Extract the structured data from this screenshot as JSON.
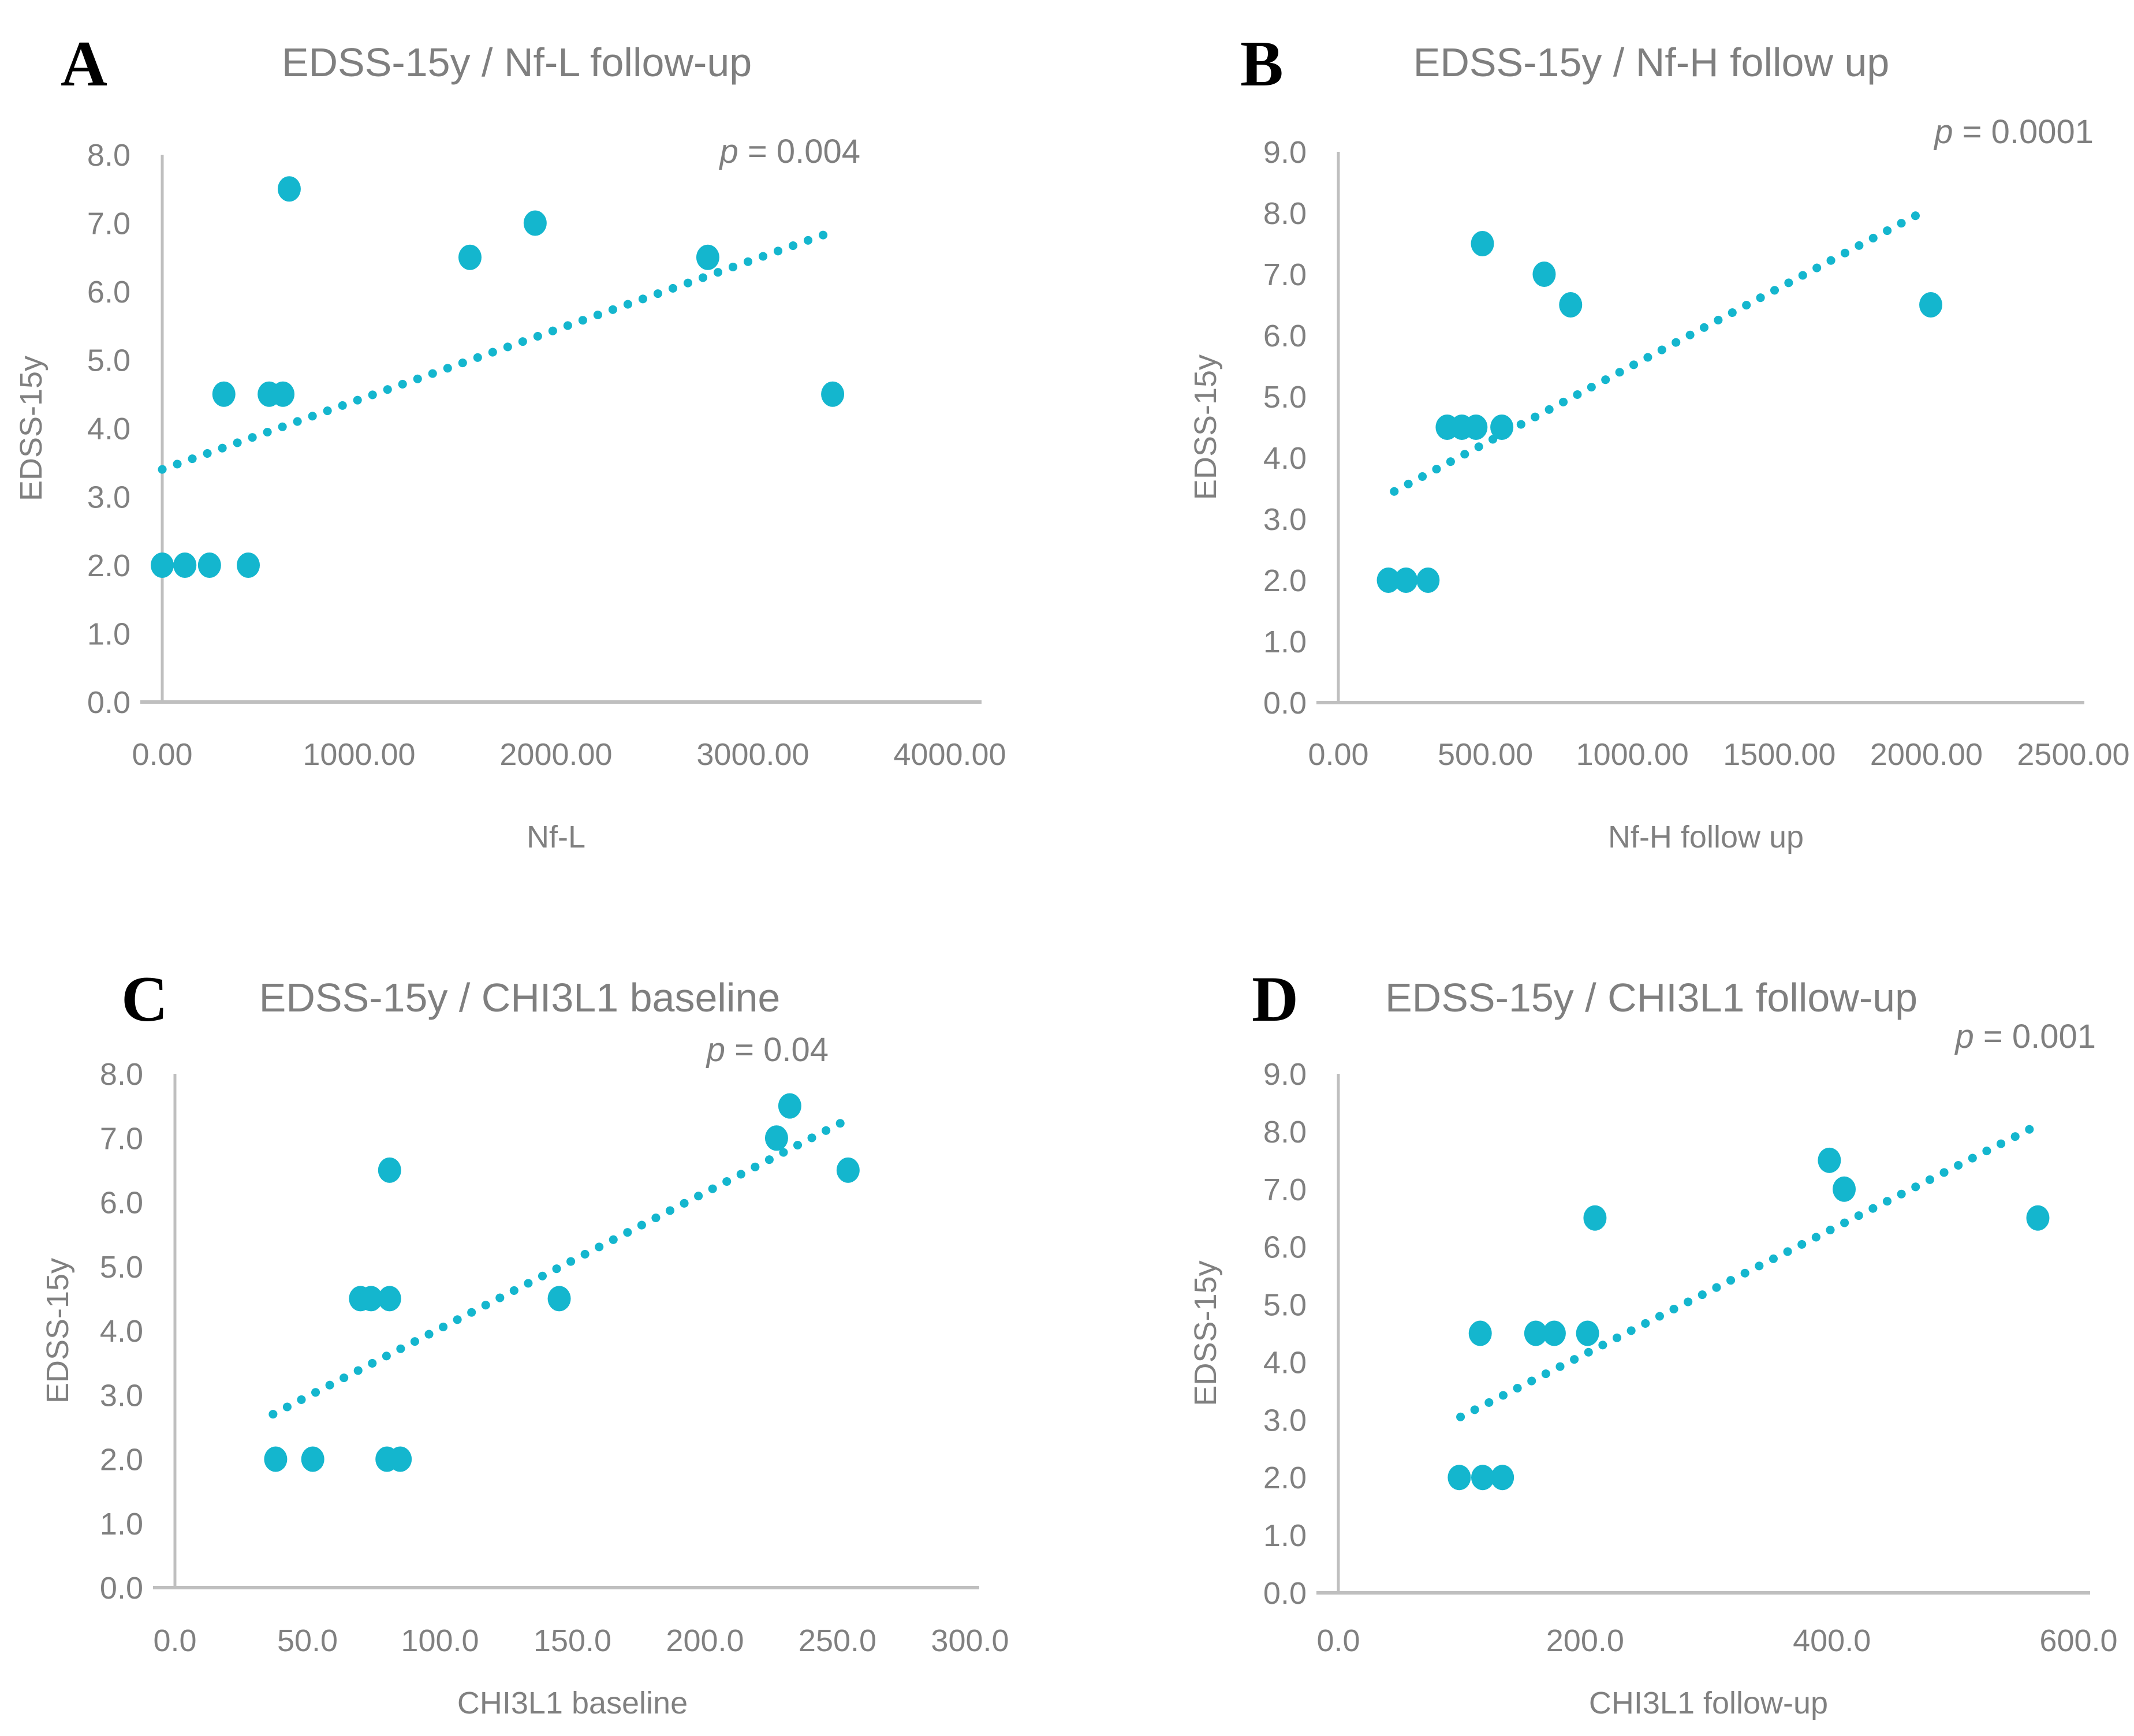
{
  "figure": {
    "background": "#ffffff",
    "description": "Four scatter plots correlating EDSS at 15 years with biomarker levels"
  },
  "colors": {
    "accent": "#14B6CE",
    "axis_line": "#BFBFBF",
    "tick_label": "#808080",
    "title_text": "#7F7F7F",
    "panel_letter": "#000000"
  },
  "chart_data": [
    {
      "id": "A",
      "type": "scatter",
      "letter": "A",
      "title": "EDSS-15y / Nf-L follow-up",
      "p_label": "p = 0.004",
      "xlabel": "Nf-L",
      "ylabel": "EDSS-15y",
      "xlim": [
        0,
        4000
      ],
      "ylim": [
        0,
        8
      ],
      "x_ticks": {
        "values": [
          0,
          1000,
          2000,
          3000,
          4000
        ],
        "labels": [
          "0.00",
          "1000.00",
          "2000.00",
          "3000.00",
          "4000.00"
        ]
      },
      "y_ticks": {
        "values": [
          0,
          1,
          2,
          3,
          4,
          5,
          6,
          7,
          8
        ],
        "labels": [
          "0.0",
          "1.0",
          "2.0",
          "3.0",
          "4.0",
          "5.0",
          "6.0",
          "7.0",
          "8.0"
        ]
      },
      "points": [
        [
          0,
          2.0
        ],
        [
          115,
          2.0
        ],
        [
          240,
          2.0
        ],
        [
          437,
          2.0
        ],
        [
          313,
          4.5
        ],
        [
          543,
          4.5
        ],
        [
          613,
          4.5
        ],
        [
          3405,
          4.5
        ],
        [
          1563,
          6.5
        ],
        [
          2771,
          6.5
        ],
        [
          1894,
          7.0
        ],
        [
          645,
          7.5
        ]
      ],
      "trend": {
        "x1": 0,
        "y1": 3.4,
        "x2": 3380,
        "y2": 6.85
      },
      "grid": false,
      "legend": "none"
    },
    {
      "id": "B",
      "type": "scatter",
      "letter": "B",
      "title": "EDSS-15y / Nf-H follow up",
      "p_label": "p = 0.0001",
      "xlabel": "Nf-H follow up",
      "ylabel": "EDSS-15y",
      "xlim": [
        0,
        2500
      ],
      "ylim": [
        0,
        9
      ],
      "x_ticks": {
        "values": [
          0,
          500,
          1000,
          1500,
          2000,
          2500
        ],
        "labels": [
          "0.00",
          "500.00",
          "1000.00",
          "1500.00",
          "2000.00",
          "2500.00"
        ]
      },
      "y_ticks": {
        "values": [
          0,
          1,
          2,
          3,
          4,
          5,
          6,
          7,
          8,
          9
        ],
        "labels": [
          "0.0",
          "1.0",
          "2.0",
          "3.0",
          "4.0",
          "5.0",
          "6.0",
          "7.0",
          "8.0",
          "9.0"
        ]
      },
      "points": [
        [
          170,
          2.0
        ],
        [
          230,
          2.0
        ],
        [
          305,
          2.0
        ],
        [
          370,
          4.5
        ],
        [
          420,
          4.5
        ],
        [
          468,
          4.5
        ],
        [
          556,
          4.5
        ],
        [
          790,
          6.5
        ],
        [
          2015,
          6.5
        ],
        [
          700,
          7.0
        ],
        [
          490,
          7.5
        ]
      ],
      "trend": {
        "x1": 190,
        "y1": 3.45,
        "x2": 2000,
        "y2": 8.05
      },
      "grid": false,
      "legend": "none"
    },
    {
      "id": "C",
      "type": "scatter",
      "letter": "C",
      "title": "EDSS-15y / CHI3L1 baseline",
      "p_label": "p = 0.04",
      "xlabel": "CHI3L1 baseline",
      "ylabel": "EDSS-15y",
      "xlim": [
        0,
        300
      ],
      "ylim": [
        0,
        8
      ],
      "x_ticks": {
        "values": [
          0,
          50,
          100,
          150,
          200,
          250,
          300
        ],
        "labels": [
          "0.0",
          "50.0",
          "100.0",
          "150.0",
          "200.0",
          "250.0",
          "300.0"
        ]
      },
      "y_ticks": {
        "values": [
          0,
          1,
          2,
          3,
          4,
          5,
          6,
          7,
          8
        ],
        "labels": [
          "0.0",
          "1.0",
          "2.0",
          "3.0",
          "4.0",
          "5.0",
          "6.0",
          "7.0",
          "8.0"
        ]
      },
      "points": [
        [
          38,
          2.0
        ],
        [
          52,
          2.0
        ],
        [
          80,
          2.0
        ],
        [
          85,
          2.0
        ],
        [
          70,
          4.5
        ],
        [
          74,
          4.5
        ],
        [
          81,
          4.5
        ],
        [
          145,
          4.5
        ],
        [
          81,
          6.5
        ],
        [
          254,
          6.5
        ],
        [
          227,
          7.0
        ],
        [
          232,
          7.5
        ]
      ],
      "trend": {
        "x1": 37,
        "y1": 2.7,
        "x2": 252,
        "y2": 7.25
      },
      "grid": false,
      "legend": "none"
    },
    {
      "id": "D",
      "type": "scatter",
      "letter": "D",
      "title": "EDSS-15y / CHI3L1 follow-up",
      "p_label": "p = 0.001",
      "xlabel": "CHI3L1 follow-up",
      "ylabel": "EDSS-15y",
      "xlim": [
        0,
        600
      ],
      "ylim": [
        0,
        9
      ],
      "x_ticks": {
        "values": [
          0,
          200,
          400,
          600
        ],
        "labels": [
          "0.0",
          "200.0",
          "400.0",
          "600.0"
        ]
      },
      "y_ticks": {
        "values": [
          0,
          1,
          2,
          3,
          4,
          5,
          6,
          7,
          8,
          9
        ],
        "labels": [
          "0.0",
          "1.0",
          "2.0",
          "3.0",
          "4.0",
          "5.0",
          "6.0",
          "7.0",
          "8.0",
          "9.0"
        ]
      },
      "points": [
        [
          98,
          2.0
        ],
        [
          117,
          2.0
        ],
        [
          133,
          2.0
        ],
        [
          115,
          4.5
        ],
        [
          160,
          4.5
        ],
        [
          175,
          4.5
        ],
        [
          202,
          4.5
        ],
        [
          208,
          6.5
        ],
        [
          567,
          6.5
        ],
        [
          410,
          7.0
        ],
        [
          398,
          7.5
        ]
      ],
      "trend": {
        "x1": 99,
        "y1": 3.05,
        "x2": 566,
        "y2": 8.1
      },
      "grid": false,
      "legend": "none"
    }
  ]
}
